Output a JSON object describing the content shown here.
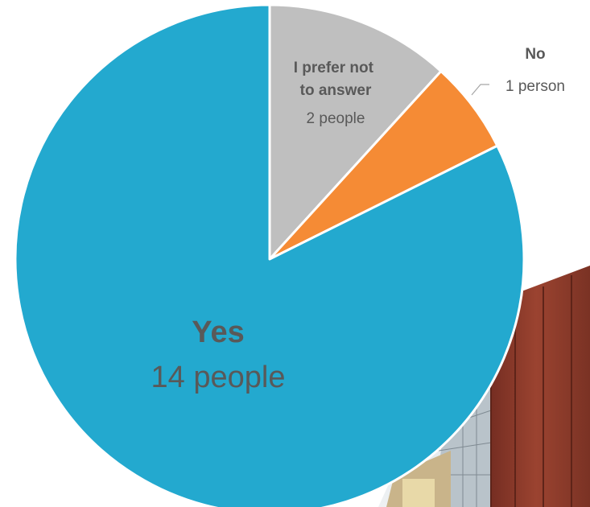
{
  "chart_data": {
    "type": "pie",
    "title": "",
    "start_angle_deg": 0,
    "direction": "clockwise",
    "slices": [
      {
        "label": "I prefer not to answer",
        "count_text": "2 people",
        "value": 2,
        "color": "#bfbfbf"
      },
      {
        "label": "No",
        "count_text": "1 person",
        "value": 1,
        "color": "#f58b35"
      },
      {
        "label": "Yes",
        "count_text": "14 people",
        "value": 14,
        "color": "#23a9cf"
      }
    ]
  },
  "colors": {
    "slice_border": "#ffffff",
    "label_text": "#595959",
    "leader_line": "#a6a6a6",
    "building_wall": "#8e3b2b",
    "building_glass": "#9aa7b1"
  },
  "decoration": {
    "icon": "building-photo-icon"
  }
}
